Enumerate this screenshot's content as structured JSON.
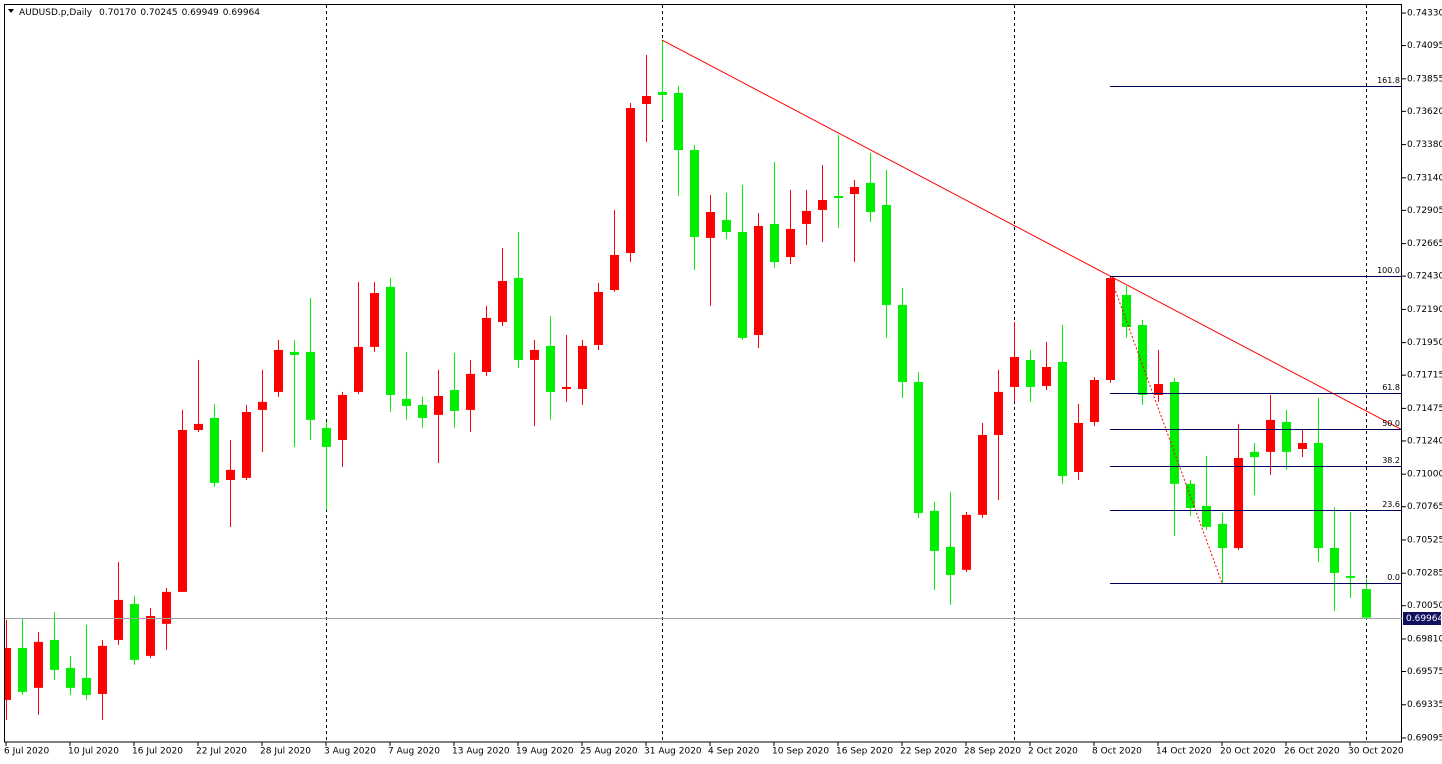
{
  "chart_data": {
    "type": "candlestick",
    "header": {
      "symbol": "AUDUSD.p,Daily",
      "values": [
        "0.70170",
        "0.70245",
        "0.69949",
        "0.69964"
      ]
    },
    "categories": [
      "6 Jul 2020",
      null,
      null,
      null,
      "10 Jul 2020",
      null,
      null,
      null,
      "16 Jul 2020",
      null,
      null,
      null,
      "22 Jul 2020",
      null,
      null,
      null,
      "28 Jul 2020",
      null,
      null,
      null,
      "3 Aug 2020",
      null,
      null,
      null,
      "7 Aug 2020",
      null,
      null,
      null,
      "13 Aug 2020",
      null,
      null,
      null,
      "19 Aug 2020",
      null,
      null,
      null,
      "25 Aug 2020",
      null,
      null,
      null,
      "31 Aug 2020",
      null,
      null,
      null,
      "4 Sep 2020",
      null,
      null,
      null,
      "10 Sep 2020",
      null,
      null,
      null,
      "16 Sep 2020",
      null,
      null,
      null,
      "22 Sep 2020",
      null,
      null,
      null,
      "28 Sep 2020",
      null,
      null,
      null,
      "2 Oct 2020",
      null,
      null,
      null,
      "8 Oct 2020",
      null,
      null,
      null,
      "14 Oct 2020",
      null,
      null,
      null,
      "20 Oct 2020",
      null,
      null,
      null,
      "26 Oct 2020",
      null,
      null,
      null,
      "30 Oct 2020",
      null
    ],
    "open": [
      0.6937,
      0.69745,
      0.69457,
      0.69803,
      0.69601,
      0.69529,
      0.69413,
      0.69803,
      0.70063,
      0.69688,
      0.69919,
      0.7015,
      0.71319,
      0.71406,
      0.70958,
      0.70973,
      0.71464,
      0.71594,
      0.71883,
      0.71883,
      0.71334,
      0.71247,
      0.71594,
      0.71919,
      0.72352,
      0.71543,
      0.715,
      0.71428,
      0.71608,
      0.71464,
      0.71738,
      0.72099,
      0.72417,
      0.71825,
      0.71926,
      0.71615,
      0.71615,
      0.71933,
      0.7233,
      0.72597,
      0.73673,
      0.7376,
      0.73753,
      0.73341,
      0.72706,
      0.72836,
      0.72749,
      0.72005,
      0.72807,
      0.72568,
      0.72807,
      0.72908,
      0.73009,
      0.73023,
      0.73103,
      0.72944,
      0.72222,
      0.71666,
      0.70735,
      0.70475,
      0.70309,
      0.70706,
      0.71283,
      0.7163,
      0.71825,
      0.71637,
      0.7181,
      0.71016,
      0.71377,
      0.7168,
      0.72294,
      0.72077,
      0.71572,
      0.71666,
      0.7093,
      0.70771,
      0.70641,
      0.70467,
      0.71161,
      0.71161,
      0.71377,
      0.71182,
      0.71225,
      0.70467,
      0.70265,
      0.7017
    ],
    "high": [
      0.69948,
      0.69962,
      0.69861,
      0.70005,
      0.69688,
      0.69912,
      0.69803,
      0.70366,
      0.70121,
      0.70034,
      0.70179,
      0.71464,
      0.71825,
      0.71507,
      0.71247,
      0.715,
      0.71753,
      0.71969,
      0.71969,
      0.72272,
      0.71377,
      0.71594,
      0.72388,
      0.72388,
      0.72417,
      0.71883,
      0.71558,
      0.71753,
      0.71875,
      0.71825,
      0.72215,
      0.72633,
      0.72749,
      0.71969,
      0.72142,
      0.72005,
      0.71969,
      0.72381,
      0.72908,
      0.7368,
      0.74027,
      0.74135,
      0.73803,
      0.73377,
      0.73016,
      0.73031,
      0.73088,
      0.72886,
      0.73254,
      0.73052,
      0.73052,
      0.73233,
      0.73449,
      0.73124,
      0.73319,
      0.73197,
      0.72345,
      0.71738,
      0.708,
      0.70872,
      0.70727,
      0.7137,
      0.71753,
      0.72099,
      0.71897,
      0.71955,
      0.72077,
      0.71507,
      0.71702,
      0.72431,
      0.72359,
      0.72114,
      0.71897,
      0.71695,
      0.70958,
      0.71132,
      0.7072,
      0.71363,
      0.71225,
      0.71572,
      0.71464,
      0.71319,
      0.7155,
      0.70763,
      0.70727,
      0.70245
    ],
    "low": [
      0.69226,
      0.69406,
      0.69262,
      0.69514,
      0.69406,
      0.6937,
      0.69226,
      0.69767,
      0.69623,
      0.69673,
      0.69731,
      0.7015,
      0.71305,
      0.70908,
      0.70619,
      0.70958,
      0.71161,
      0.71558,
      0.71197,
      0.71247,
      0.70742,
      0.71052,
      0.71579,
      0.71883,
      0.71449,
      0.71392,
      0.71334,
      0.71081,
      0.71334,
      0.71305,
      0.71709,
      0.7207,
      0.71767,
      0.71348,
      0.71392,
      0.71522,
      0.715,
      0.71897,
      0.72316,
      0.72532,
      0.73399,
      0.73558,
      0.73009,
      0.72475,
      0.72215,
      0.72698,
      0.71969,
      0.71911,
      0.72489,
      0.72518,
      0.72655,
      0.72677,
      0.72778,
      0.72532,
      0.72821,
      0.71984,
      0.7155,
      0.70684,
      0.70164,
      0.70056,
      0.70294,
      0.70684,
      0.70814,
      0.71522,
      0.71522,
      0.71608,
      0.7093,
      0.70958,
      0.71348,
      0.71659,
      0.71984,
      0.715,
      0.71522,
      0.70554,
      0.70698,
      0.70597,
      0.70215,
      0.70453,
      0.7085,
      0.70994,
      0.71031,
      0.71124,
      0.70366,
      0.70013,
      0.70106,
      0.69949
    ],
    "close": [
      0.69745,
      0.69428,
      0.69789,
      0.69587,
      0.69457,
      0.69406,
      0.6976,
      0.70092,
      0.69659,
      0.69976,
      0.7015,
      0.71319,
      0.71363,
      0.70937,
      0.71031,
      0.71449,
      0.71522,
      0.71897,
      0.71861,
      0.71392,
      0.71197,
      0.71572,
      0.71919,
      0.72308,
      0.71572,
      0.71493,
      0.71406,
      0.71565,
      0.71457,
      0.71724,
      0.72128,
      0.72395,
      0.71825,
      0.71897,
      0.71594,
      0.7163,
      0.71926,
      0.72316,
      0.72583,
      0.73644,
      0.73731,
      0.73738,
      0.73341,
      0.72713,
      0.72893,
      0.72749,
      0.71984,
      0.72792,
      0.72532,
      0.72771,
      0.72901,
      0.7298,
      0.72994,
      0.73074,
      0.72893,
      0.72222,
      0.71666,
      0.7072,
      0.70446,
      0.70272,
      0.70706,
      0.71283,
      0.71594,
      0.71846,
      0.7163,
      0.71774,
      0.70987,
      0.7137,
      0.7168,
      0.72417,
      0.72063,
      0.71572,
      0.71651,
      0.7093,
      0.70756,
      0.70619,
      0.70467,
      0.71117,
      0.71124,
      0.71392,
      0.71161,
      0.71225,
      0.70467,
      0.70287,
      0.70251,
      0.69964
    ],
    "up_color": "#ff0000",
    "down_color": "#00ee00",
    "ylim": [
      0.69066,
      0.74388
    ],
    "yticks": [
      {
        "value": 0.7433,
        "label": "0.74330"
      },
      0.74095,
      0.73855,
      {
        "value": 0.7362,
        "label": "0.73620"
      },
      {
        "value": 0.7338,
        "label": "0.73380"
      },
      {
        "value": 0.7314,
        "label": "0.73140"
      },
      0.72905,
      0.72665,
      {
        "value": 0.7243,
        "label": "0.72430"
      },
      {
        "value": 0.7219,
        "label": "0.72190"
      },
      {
        "value": 0.7195,
        "label": "0.71950"
      },
      0.71715,
      0.71475,
      {
        "value": 0.7124,
        "label": "0.71240"
      },
      {
        "value": 0.71,
        "label": "0.71000"
      },
      0.70765,
      0.70525,
      0.70285,
      {
        "value": 0.7005,
        "label": "0.70050"
      },
      {
        "value": 0.6981,
        "label": "0.69810"
      },
      0.69575,
      0.69335,
      0.69095
    ],
    "grid": false,
    "last_price": {
      "value": 0.69964,
      "label": "0.69964"
    },
    "trendline": {
      "color": "#ff0000",
      "from": {
        "index": 41,
        "price": 0.74135
      },
      "to": {
        "index": 69,
        "price": 0.72431
      }
    },
    "fibonacci": {
      "line_color": "#000060",
      "base_color": "#ff0000",
      "from": {
        "index": 69,
        "price": 0.72431
      },
      "to": {
        "index": 76,
        "price": 0.70215
      },
      "levels": [
        161.8,
        {
          "value": 100,
          "label": "100.0"
        },
        61.8,
        {
          "value": 50,
          "label": "50.0"
        },
        38.2,
        23.6,
        {
          "value": 0,
          "label": "0.0"
        }
      ]
    }
  }
}
